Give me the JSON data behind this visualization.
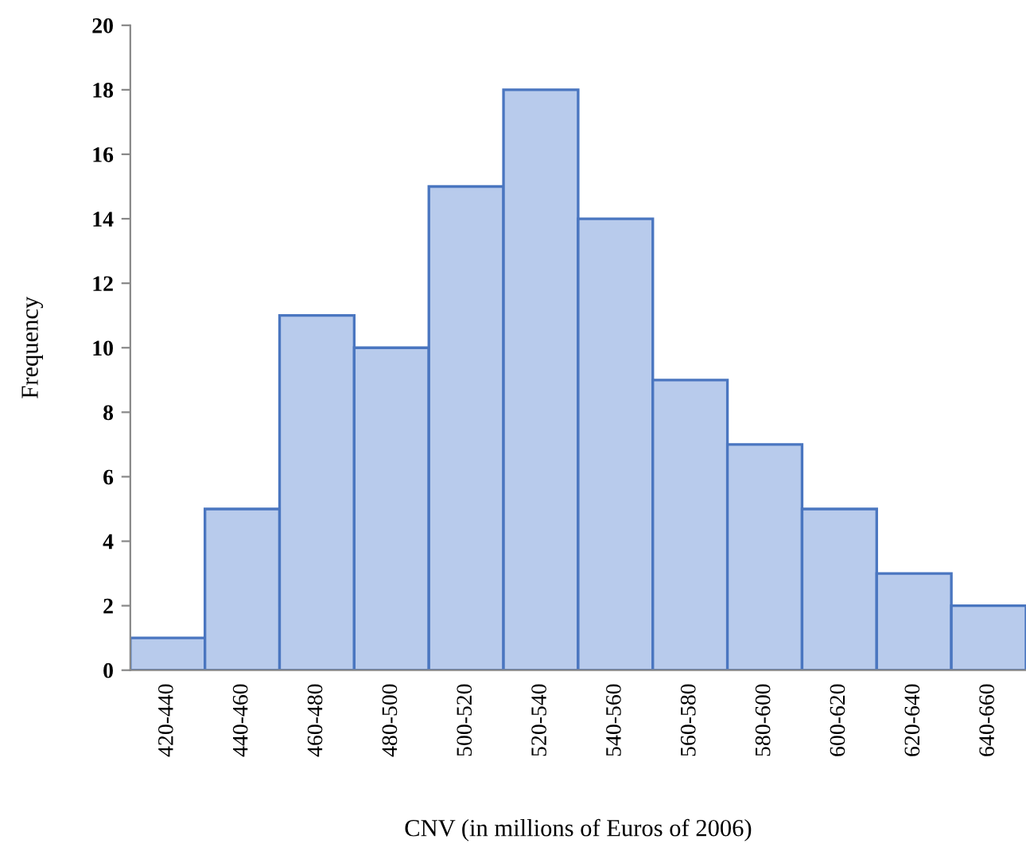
{
  "chart_data": {
    "type": "bar",
    "xlabel": "CNV (in millions of Euros of 2006)",
    "ylabel": "Frequency",
    "categories": [
      "420-440",
      "440-460",
      "460-480",
      "480-500",
      "500-520",
      "520-540",
      "540-560",
      "560-580",
      "580-600",
      "600-620",
      "620-640",
      "640-660"
    ],
    "values": [
      1,
      5,
      11,
      10,
      15,
      18,
      14,
      9,
      7,
      5,
      3,
      2
    ],
    "color": "#b8cbec",
    "ylim": [
      0,
      20
    ],
    "yticks": [
      0,
      2,
      4,
      6,
      8,
      10,
      12,
      14,
      16,
      18,
      20
    ],
    "grid": false,
    "legend": false
  }
}
